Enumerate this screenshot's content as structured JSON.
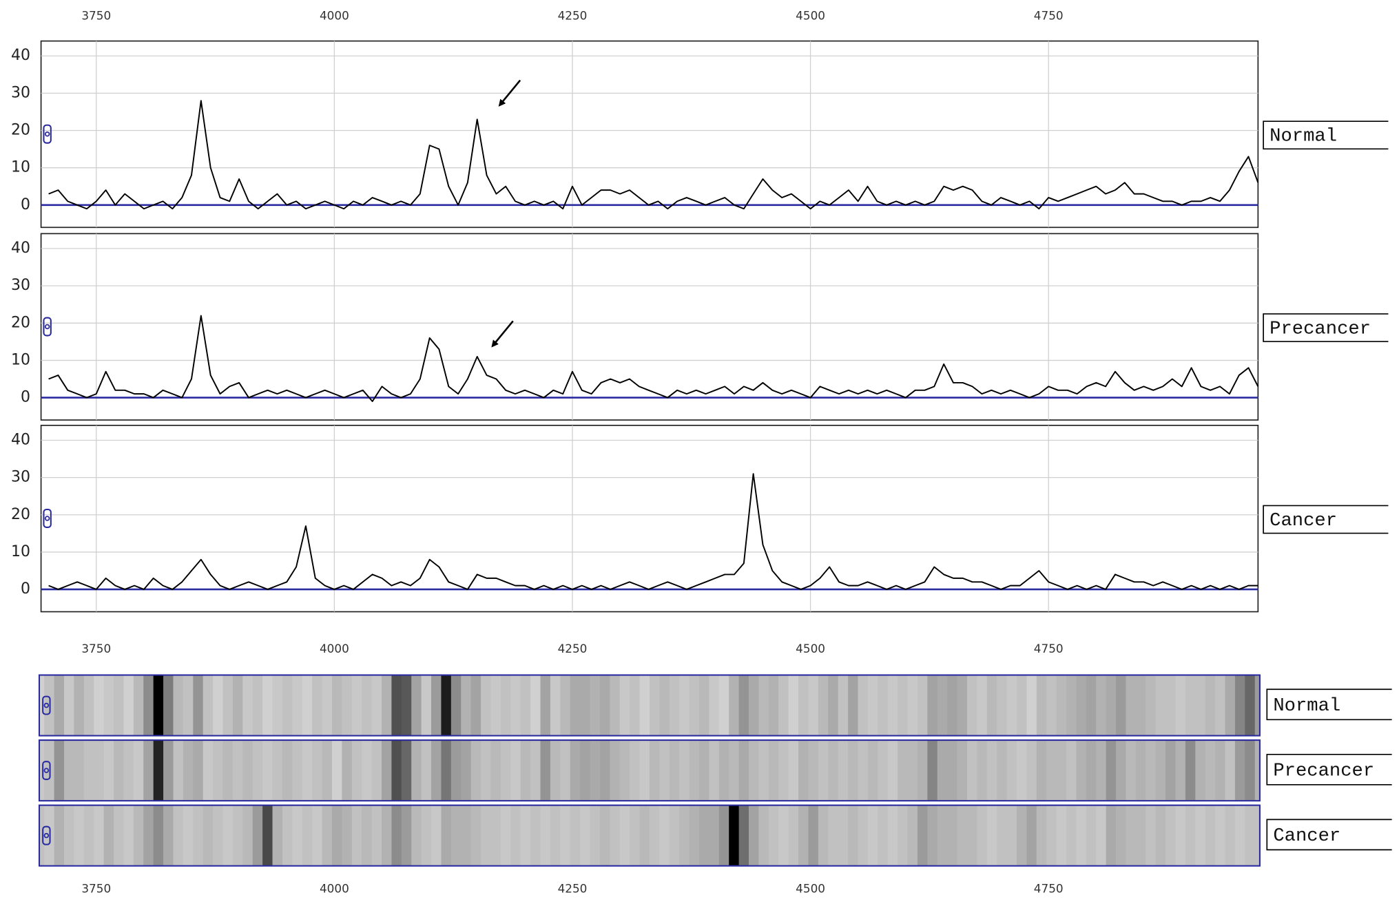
{
  "chart_data": {
    "type": "line",
    "x": [
      3700,
      3710,
      3720,
      3730,
      3740,
      3750,
      3760,
      3770,
      3780,
      3790,
      3800,
      3810,
      3820,
      3830,
      3840,
      3850,
      3860,
      3870,
      3880,
      3890,
      3900,
      3910,
      3920,
      3930,
      3940,
      3950,
      3960,
      3970,
      3980,
      3990,
      4000,
      4010,
      4020,
      4030,
      4040,
      4050,
      4060,
      4070,
      4080,
      4090,
      4100,
      4110,
      4120,
      4130,
      4140,
      4150,
      4160,
      4170,
      4180,
      4190,
      4200,
      4210,
      4220,
      4230,
      4240,
      4250,
      4260,
      4270,
      4280,
      4290,
      4300,
      4310,
      4320,
      4330,
      4340,
      4350,
      4360,
      4370,
      4380,
      4390,
      4400,
      4410,
      4420,
      4430,
      4440,
      4450,
      4460,
      4470,
      4480,
      4490,
      4500,
      4510,
      4520,
      4530,
      4540,
      4550,
      4560,
      4570,
      4580,
      4590,
      4600,
      4610,
      4620,
      4630,
      4640,
      4650,
      4660,
      4670,
      4680,
      4690,
      4700,
      4710,
      4720,
      4730,
      4740,
      4750,
      4760,
      4770,
      4780,
      4790,
      4800,
      4810,
      4820,
      4830,
      4840,
      4850,
      4860,
      4870,
      4880,
      4890,
      4900,
      4910,
      4920,
      4930,
      4940,
      4950,
      4960,
      4970
    ],
    "series": [
      {
        "name": "Normal",
        "color": "#000000",
        "values": [
          3,
          4,
          1,
          0,
          -1,
          1,
          4,
          0,
          3,
          1,
          -1,
          0,
          1,
          -1,
          2,
          8,
          28,
          10,
          2,
          1,
          7,
          1,
          -1,
          1,
          3,
          0,
          1,
          -1,
          0,
          1,
          0,
          -1,
          1,
          0,
          2,
          1,
          0,
          1,
          0,
          3,
          16,
          15,
          5,
          0,
          6,
          23,
          8,
          3,
          5,
          1,
          0,
          1,
          0,
          1,
          -1,
          5,
          0,
          2,
          4,
          4,
          3,
          4,
          2,
          0,
          1,
          -1,
          1,
          2,
          1,
          0,
          1,
          2,
          0,
          -1,
          3,
          7,
          4,
          2,
          3,
          1,
          -1,
          1,
          0,
          2,
          4,
          1,
          5,
          1,
          0,
          1,
          0,
          1,
          0,
          1,
          5,
          4,
          5,
          4,
          1,
          0,
          2,
          1,
          0,
          1,
          -1,
          2,
          1,
          2,
          3,
          4,
          5,
          3,
          4,
          6,
          3,
          3,
          2,
          1,
          1,
          0,
          1,
          1,
          2,
          1,
          4,
          9,
          13,
          6
        ]
      },
      {
        "name": "Precancer",
        "color": "#000000",
        "values": [
          5,
          6,
          2,
          1,
          0,
          1,
          7,
          2,
          2,
          1,
          1,
          0,
          2,
          1,
          0,
          5,
          22,
          6,
          1,
          3,
          4,
          0,
          1,
          2,
          1,
          2,
          1,
          0,
          1,
          2,
          1,
          0,
          1,
          2,
          -1,
          3,
          1,
          0,
          1,
          5,
          16,
          13,
          3,
          1,
          5,
          11,
          6,
          5,
          2,
          1,
          2,
          1,
          0,
          2,
          1,
          7,
          2,
          1,
          4,
          5,
          4,
          5,
          3,
          2,
          1,
          0,
          2,
          1,
          2,
          1,
          2,
          3,
          1,
          3,
          2,
          4,
          2,
          1,
          2,
          1,
          0,
          3,
          2,
          1,
          2,
          1,
          2,
          1,
          2,
          1,
          0,
          2,
          2,
          3,
          9,
          4,
          4,
          3,
          1,
          2,
          1,
          2,
          1,
          0,
          1,
          3,
          2,
          2,
          1,
          3,
          4,
          3,
          7,
          4,
          2,
          3,
          2,
          3,
          5,
          3,
          8,
          3,
          2,
          3,
          1,
          6,
          8,
          3
        ]
      },
      {
        "name": "Cancer",
        "color": "#000000",
        "values": [
          1,
          0,
          1,
          2,
          1,
          0,
          3,
          1,
          0,
          1,
          0,
          3,
          1,
          0,
          2,
          5,
          8,
          4,
          1,
          0,
          1,
          2,
          1,
          0,
          1,
          2,
          6,
          17,
          3,
          1,
          0,
          1,
          0,
          2,
          4,
          3,
          1,
          2,
          1,
          3,
          8,
          6,
          2,
          1,
          0,
          4,
          3,
          3,
          2,
          1,
          1,
          0,
          1,
          0,
          1,
          0,
          1,
          0,
          1,
          0,
          1,
          2,
          1,
          0,
          1,
          2,
          1,
          0,
          1,
          2,
          3,
          4,
          4,
          7,
          31,
          12,
          5,
          2,
          1,
          0,
          1,
          3,
          6,
          2,
          1,
          1,
          2,
          1,
          0,
          1,
          0,
          1,
          2,
          6,
          4,
          3,
          3,
          2,
          2,
          1,
          0,
          1,
          1,
          3,
          5,
          2,
          1,
          0,
          1,
          0,
          1,
          0,
          4,
          3,
          2,
          2,
          1,
          2,
          1,
          0,
          1,
          0,
          1,
          0,
          1,
          0,
          1,
          1
        ]
      }
    ],
    "xlim": [
      3692,
      4970
    ],
    "xticks": [
      3750,
      4000,
      4250,
      4500,
      4750
    ],
    "ylim": [
      -6,
      44
    ],
    "yticks": [
      0,
      10,
      20,
      30,
      40
    ],
    "grid": true,
    "baseline_color": "#2a2aa0",
    "gel_view": true,
    "gel_xlim": [
      3740,
      4970
    ]
  }
}
